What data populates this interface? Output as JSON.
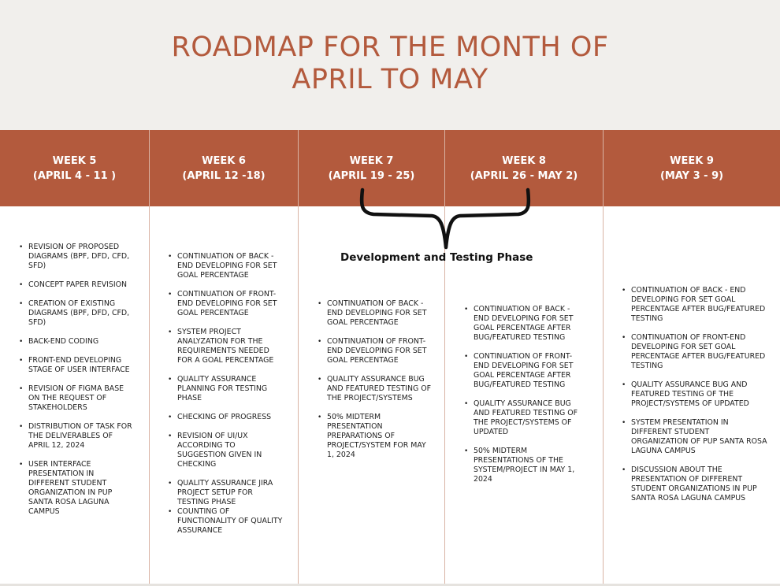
{
  "title": {
    "line1": "ROADMAP FOR THE MONTH OF",
    "line2": "APRIL TO MAY"
  },
  "phase_label": "Development and Testing Phase",
  "weeks": [
    {
      "label": "WEEK 5",
      "range": "(APRIL 4 - 11 )",
      "tasks": [
        "REVISION OF  PROPOSED DIAGRAMS (BPF, DFD, CFD, SFD)",
        "CONCEPT PAPER REVISION",
        "CREATION OF EXISTING DIAGRAMS (BPF, DFD, CFD, SFD)",
        "BACK-END CODING",
        "FRONT-END DEVELOPING STAGE OF USER INTERFACE",
        "REVISION OF FIGMA BASE ON THE REQUEST OF STAKEHOLDERS",
        "DISTRIBUTION OF TASK FOR THE DELIVERABLES OF APRIL 12, 2024",
        "USER INTERFACE PRESENTATION IN DIFFERENT STUDENT ORGANIZATION IN PUP SANTA ROSA LAGUNA CAMPUS"
      ]
    },
    {
      "label": "WEEK 6",
      "range": "(APRIL 12 -18)",
      "tasks": [
        "CONTINUATION OF BACK - END DEVELOPING FOR SET GOAL PERCENTAGE",
        "CONTINUATION OF FRONT-END DEVELOPING FOR SET GOAL PERCENTAGE",
        "SYSTEM PROJECT ANALYZATION FOR THE REQUIREMENTS NEEDED FOR A GOAL PERCENTAGE",
        "QUALITY ASSURANCE PLANNING FOR TESTING PHASE",
        "CHECKING OF PROGRESS",
        "REVISION OF UI/UX ACCORDING TO SUGGESTION GIVEN IN CHECKING",
        "QUALITY ASSURANCE JIRA PROJECT SETUP  FOR TESTING PHASE",
        "COUNTING OF FUNCTIONALITY OF QUALITY ASSURANCE"
      ]
    },
    {
      "label": "WEEK 7",
      "range": "(APRIL 19 - 25)",
      "tasks": [
        "CONTINUATION OF BACK - END DEVELOPING FOR SET GOAL PERCENTAGE",
        "CONTINUATION OF FRONT-END DEVELOPING FOR SET GOAL PERCENTAGE",
        "QUALITY ASSURANCE BUG AND FEATURED TESTING OF THE PROJECT/SYSTEMS",
        "50% MIDTERM PRESENTATION PREPARATIONS OF PROJECT/SYSTEM FOR MAY 1, 2024"
      ]
    },
    {
      "label": "WEEK 8",
      "range": "(APRIL 26 - MAY 2)",
      "tasks": [
        "CONTINUATION OF BACK - END DEVELOPING FOR SET GOAL PERCENTAGE AFTER BUG/FEATURED TESTING",
        "CONTINUATION OF FRONT-END DEVELOPING FOR SET GOAL PERCENTAGE AFTER BUG/FEATURED TESTING",
        "QUALITY ASSURANCE BUG AND FEATURED TESTING OF THE PROJECT/SYSTEMS OF UPDATED",
        "50% MIDTERM PRESENTATIONS OF THE SYSTEM/PROJECT IN MAY 1, 2024"
      ]
    },
    {
      "label": "WEEK 9",
      "range": "(MAY 3 - 9)",
      "tasks": [
        "CONTINUATION OF BACK - END DEVELOPING FOR SET GOAL PERCENTAGE AFTER BUG/FEATURED TESTING",
        "CONTINUATION OF FRONT-END DEVELOPING FOR SET GOAL PERCENTAGE AFTER BUG/FEATURED TESTING",
        "QUALITY ASSURANCE BUG AND FEATURED TESTING OF THE PROJECT/SYSTEMS OF UPDATED",
        "SYSTEM PRESENTATION IN DIFFERENT STUDENT ORGANIZATION OF PUP SANTA ROSA LAGUNA CAMPUS",
        "DISCUSSION ABOUT THE PRESENTATION OF DIFFERENT STUDENT ORGANIZATIONS IN PUP SANTA ROSA LAGUNA CAMPUS"
      ]
    }
  ],
  "colors": {
    "accent": "#b35a3d",
    "background": "#f1efec",
    "card": "#ffffff"
  }
}
